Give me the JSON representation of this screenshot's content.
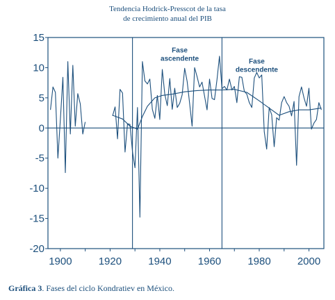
{
  "chart_data": {
    "type": "line",
    "title": [
      "Tendencia Hodrick-Presscot de la tasa",
      "de crecimiento anual del PIB"
    ],
    "xlabel": "",
    "ylabel": "",
    "xlim": [
      1895,
      2006
    ],
    "ylim": [
      -20,
      15
    ],
    "xticks": [
      1900,
      1920,
      1940,
      1960,
      1980,
      2000
    ],
    "yticks": [
      15,
      10,
      5,
      0,
      -5,
      -10,
      -15,
      -20
    ],
    "grid": false,
    "legend": "none",
    "colors": {
      "line": "#1c4f7c",
      "frame": "#1c4f7c"
    },
    "vertical_lines": [
      1929,
      1965
    ],
    "zero_line": 0,
    "annotations": [
      {
        "text": [
          "Fase",
          "ascendente"
        ],
        "x": 1948,
        "y": 12.5
      },
      {
        "text": [
          "Fase",
          "descendente"
        ],
        "x": 1979,
        "y": 10.7
      }
    ],
    "series": [
      {
        "segments": [
          {
            "x": [
              1896,
              1897,
              1898,
              1899,
              1900,
              1901,
              1902,
              1903,
              1904,
              1905,
              1906,
              1907,
              1908,
              1909,
              1910
            ],
            "y": [
              3,
              6.8,
              5.9,
              -5,
              1.5,
              8.4,
              -7.4,
              11,
              -1,
              10.4,
              0.3,
              5.7,
              4,
              -1,
              1
            ]
          },
          {
            "x": [
              1921,
              1922,
              1923,
              1924,
              1925,
              1926,
              1927,
              1928,
              1929,
              1930,
              1931,
              1932,
              1933,
              1934,
              1935,
              1936,
              1937,
              1938,
              1939,
              1940,
              1941,
              1942,
              1943,
              1944,
              1945,
              1946,
              1947,
              1948,
              1949,
              1950,
              1951,
              1952,
              1953,
              1954,
              1955,
              1956,
              1957,
              1958,
              1959,
              1960,
              1961,
              1962,
              1963,
              1964,
              1965,
              1966,
              1967,
              1968,
              1969,
              1970,
              1971,
              1972,
              1973,
              1974,
              1975,
              1976,
              1977,
              1978,
              1979,
              1980,
              1981,
              1982,
              1983,
              1984,
              1985,
              1986,
              1987,
              1988,
              1989,
              1990,
              1991,
              1992,
              1993,
              1994,
              1995,
              1996,
              1997,
              1998,
              1999,
              2000,
              2001,
              2002,
              2003,
              2004,
              2005
            ],
            "y": [
              2,
              3.5,
              -1.8,
              6.4,
              5.8,
              -4,
              0.7,
              0.6,
              -3.9,
              -6.6,
              3.4,
              -14.8,
              11,
              7.8,
              7.3,
              8.1,
              3.1,
              1.6,
              5.4,
              1.4,
              9.7,
              5.6,
              3.7,
              8.2,
              3.1,
              6.6,
              3.4,
              4.1,
              5.5,
              9.9,
              7.7,
              4,
              0.3,
              10,
              8.5,
              6.8,
              7.6,
              5.3,
              3,
              8.1,
              4.9,
              4.7,
              8,
              11.9,
              6.5,
              6.9,
              6.3,
              8.1,
              6.3,
              6.9,
              4.2,
              8.5,
              8.4,
              6.1,
              5.6,
              4.2,
              3.4,
              8.3,
              9.2,
              8.3,
              8.8,
              -0.6,
              -3.5,
              3.4,
              2.2,
              -3.1,
              1.7,
              1.3,
              4.2,
              5.2,
              4.2,
              3.6,
              2,
              4.4,
              -6.2,
              5.2,
              6.8,
              5,
              3.6,
              6.6,
              -0.2,
              0.8,
              1.4,
              4.2,
              3
            ]
          }
        ]
      },
      {
        "x": [
          1921,
          1925,
          1928,
          1931,
          1933,
          1935,
          1938,
          1941,
          1945,
          1950,
          1955,
          1960,
          1965,
          1970,
          1975,
          1980,
          1984,
          1988,
          1992,
          1996,
          2000,
          2005
        ],
        "y": [
          2.1,
          1.5,
          0.3,
          -0.2,
          1.9,
          3.6,
          5,
          5.4,
          5.6,
          6,
          6.2,
          6.3,
          6.3,
          6.4,
          5.9,
          4.5,
          3.3,
          2.1,
          2.7,
          3,
          3,
          3.3
        ]
      }
    ]
  },
  "caption": {
    "label": "Gráfica 3",
    "text": ". Fases del ciclo Kondratiev en México."
  }
}
